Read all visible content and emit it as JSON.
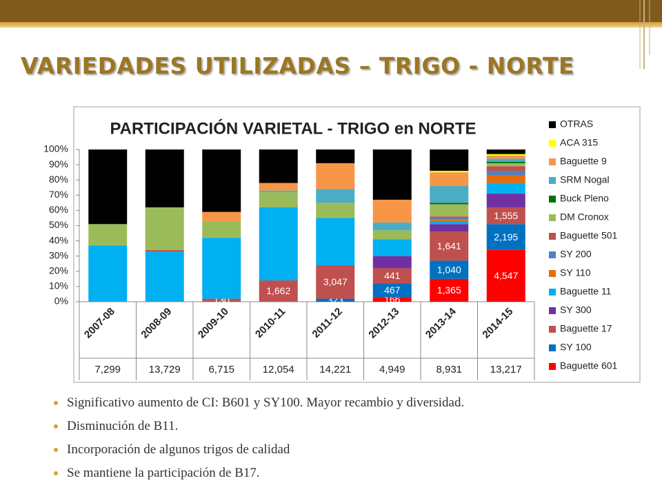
{
  "slide": {
    "title": "VARIEDADES UTILIZADAS – TRIGO - NORTE",
    "bullets": [
      "Significativo aumento de CI: B601 y SY100. Mayor recambio y diversidad.",
      "Disminución de B11.",
      "Incorporación de algunos trigos de calidad",
      "Se mantiene la participación de B17."
    ]
  },
  "chart_data": {
    "type": "bar",
    "stacked": true,
    "title": "PARTICIPACIÓN VARIETAL - TRIGO en NORTE",
    "categories": [
      "2007-08",
      "2008-09",
      "2009-10",
      "2010-11",
      "2011-12",
      "2012-13",
      "2013-14",
      "2014-15"
    ],
    "totals": [
      {
        "value": 7299,
        "label": "7,299"
      },
      {
        "value": 13729,
        "label": "13,729"
      },
      {
        "value": 6715,
        "label": "6,715"
      },
      {
        "value": 12054,
        "label": "12,054"
      },
      {
        "value": 14221,
        "label": "14,221"
      },
      {
        "value": 4949,
        "label": "4,949"
      },
      {
        "value": 8931,
        "label": "8,931"
      },
      {
        "value": 13217,
        "label": "13,217"
      }
    ],
    "ylim": [
      0,
      100
    ],
    "yticks": [
      {
        "value": 0,
        "label": "0%"
      },
      {
        "value": 10,
        "label": "10%"
      },
      {
        "value": 20,
        "label": "20%"
      },
      {
        "value": 30,
        "label": "30%"
      },
      {
        "value": 40,
        "label": "40%"
      },
      {
        "value": 50,
        "label": "50%"
      },
      {
        "value": 60,
        "label": "60%"
      },
      {
        "value": 70,
        "label": "70%"
      },
      {
        "value": 80,
        "label": "80%"
      },
      {
        "value": 90,
        "label": "90%"
      },
      {
        "value": 100,
        "label": "100%"
      }
    ],
    "grid": false,
    "legend": "right",
    "series": [
      {
        "name": "Baguette 601",
        "color": "#ff0000",
        "values": [
          0,
          0,
          0,
          0,
          0,
          3,
          15,
          34
        ],
        "data_labels": [
          null,
          null,
          null,
          null,
          null,
          {
            "value": 166,
            "label": "166"
          },
          {
            "value": 1365,
            "label": "1,365"
          },
          {
            "value": 4547,
            "label": "4,547"
          }
        ]
      },
      {
        "name": "SY 100",
        "color": "#0070c0",
        "values": [
          0,
          0,
          0,
          0,
          2,
          9,
          12,
          17
        ],
        "data_labels": [
          null,
          null,
          null,
          null,
          {
            "value": 323,
            "label": "323"
          },
          {
            "value": 467,
            "label": "467"
          },
          {
            "value": 1040,
            "label": "1,040"
          },
          {
            "value": 2195,
            "label": "2,195"
          }
        ]
      },
      {
        "name": "Baguette 17",
        "color": "#c0504d",
        "values": [
          0,
          0,
          2,
          14,
          22,
          10,
          19,
          11
        ],
        "data_labels": [
          null,
          null,
          {
            "value": 130,
            "label": "130"
          },
          {
            "value": 1662,
            "label": "1,662"
          },
          {
            "value": 3047,
            "label": "3,047"
          },
          {
            "value": 441,
            "label": "441"
          },
          {
            "value": 1641,
            "label": "1,641"
          },
          {
            "value": 1555,
            "label": "1,555"
          }
        ]
      },
      {
        "name": "SY 300",
        "color": "#7030a0",
        "values": [
          0,
          0,
          0,
          0,
          0,
          8,
          5,
          9
        ]
      },
      {
        "name": "Baguette 11",
        "color": "#00b0f0",
        "values": [
          37,
          33,
          40,
          48,
          31,
          11,
          2,
          7
        ]
      },
      {
        "name": "SY 110",
        "color": "#e46c0a",
        "values": [
          0,
          0,
          0,
          0,
          0,
          0,
          1,
          5
        ]
      },
      {
        "name": "SY 200",
        "color": "#4f81bd",
        "values": [
          0,
          0,
          0,
          0,
          0,
          0,
          1,
          3
        ]
      },
      {
        "name": "Baguette 501",
        "color": "#c0504d",
        "values": [
          0,
          1,
          0,
          0,
          0,
          0,
          1,
          3
        ]
      },
      {
        "name": "DM Cronox",
        "color": "#9bbb59",
        "values": [
          14,
          28,
          11,
          10,
          10,
          6,
          8,
          2
        ]
      },
      {
        "name": "Buck Pleno",
        "color": "#00700f",
        "values": [
          0,
          0,
          0,
          0,
          0,
          0,
          1,
          1
        ]
      },
      {
        "name": "SRM Nogal",
        "color": "#4bacc6",
        "values": [
          0,
          0,
          0,
          1,
          9,
          5,
          11,
          2
        ]
      },
      {
        "name": "Baguette 9",
        "color": "#f79646",
        "values": [
          0,
          0,
          6,
          5,
          17,
          15,
          9,
          2
        ]
      },
      {
        "name": "ACA 315",
        "color": "#ffff00",
        "values": [
          0,
          0,
          0,
          0,
          0,
          0,
          1,
          1
        ]
      },
      {
        "name": "OTRAS",
        "color": "#000000",
        "values": [
          49,
          38,
          41,
          22,
          9,
          33,
          14,
          3
        ]
      }
    ]
  }
}
